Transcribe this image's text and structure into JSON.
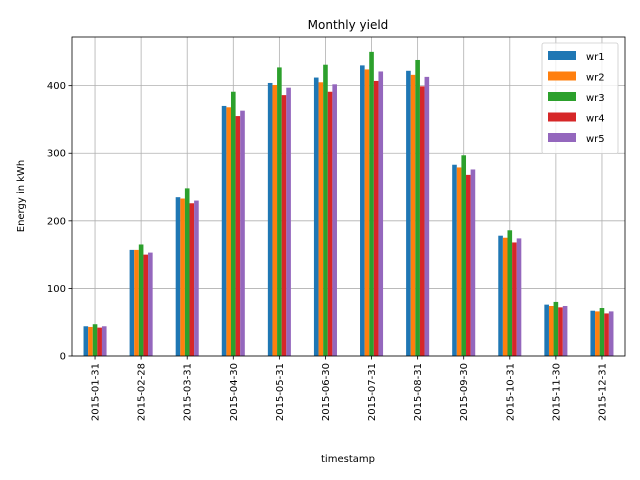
{
  "chart_data": {
    "type": "bar",
    "title": "Monthly yield",
    "xlabel": "timestamp",
    "ylabel": "Energy in kWh",
    "ylim": [
      0,
      472
    ],
    "yticks": [
      0,
      100,
      200,
      300,
      400
    ],
    "grid": true,
    "legend_position": "top-right",
    "categories": [
      "2015-01-31",
      "2015-02-28",
      "2015-03-31",
      "2015-04-30",
      "2015-05-31",
      "2015-06-30",
      "2015-07-31",
      "2015-08-31",
      "2015-09-30",
      "2015-10-31",
      "2015-11-30",
      "2015-12-31"
    ],
    "series": [
      {
        "name": "wr1",
        "color": "#1f77b4",
        "values": [
          44,
          157,
          235,
          370,
          404,
          412,
          430,
          422,
          283,
          178,
          76,
          67
        ]
      },
      {
        "name": "wr2",
        "color": "#ff7f0e",
        "values": [
          43,
          157,
          233,
          368,
          401,
          405,
          424,
          416,
          279,
          175,
          74,
          66
        ]
      },
      {
        "name": "wr3",
        "color": "#2ca02c",
        "values": [
          47,
          165,
          248,
          391,
          427,
          431,
          450,
          438,
          297,
          186,
          80,
          71
        ]
      },
      {
        "name": "wr4",
        "color": "#d62728",
        "values": [
          42,
          150,
          226,
          355,
          386,
          391,
          407,
          399,
          268,
          168,
          72,
          63
        ]
      },
      {
        "name": "wr5",
        "color": "#9467bd",
        "values": [
          44,
          153,
          230,
          363,
          397,
          402,
          421,
          413,
          276,
          174,
          74,
          66
        ]
      }
    ]
  }
}
